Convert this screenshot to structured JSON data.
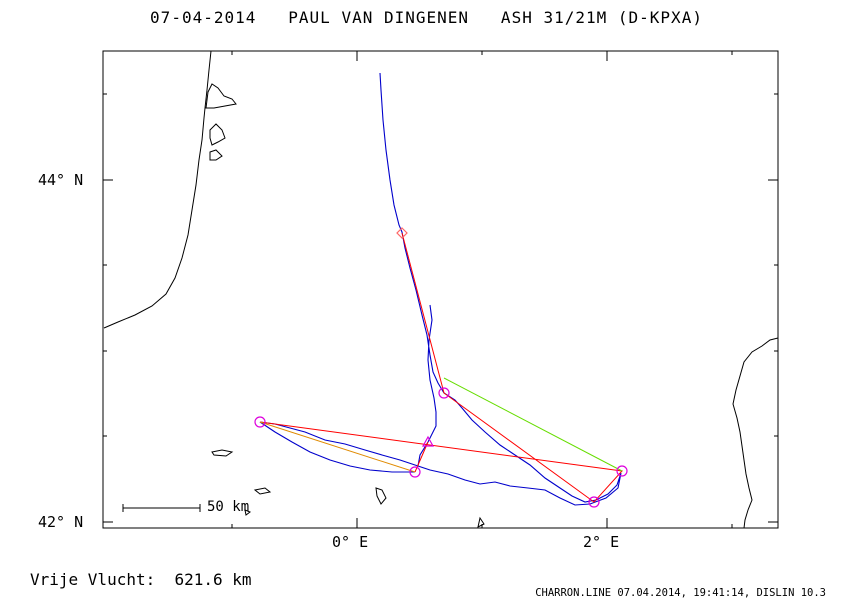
{
  "header": {
    "title": "07-04-2014   PAUL VAN DINGENEN   ASH 31/21M (D-KPXA)"
  },
  "axes": {
    "lat_labels": [
      "44° N",
      "42° N"
    ],
    "lon_labels": [
      "0° E",
      "2° E"
    ]
  },
  "scale_bar": {
    "label": "50 km"
  },
  "result": {
    "label": "Vrije Vlucht:",
    "distance": "621.6 km"
  },
  "footer": {
    "info": "CHARRON.LINE 07.04.2014, 19:41:14, DISLIN 10.3"
  },
  "colors": {
    "track": "#0000cc",
    "route": "#ff0000",
    "closing_leg": "#66dd00",
    "start_leg": "#e08a00",
    "turnpoint": "#dd00dd",
    "start_marker": "#ff6666",
    "coast": "#000000"
  }
}
